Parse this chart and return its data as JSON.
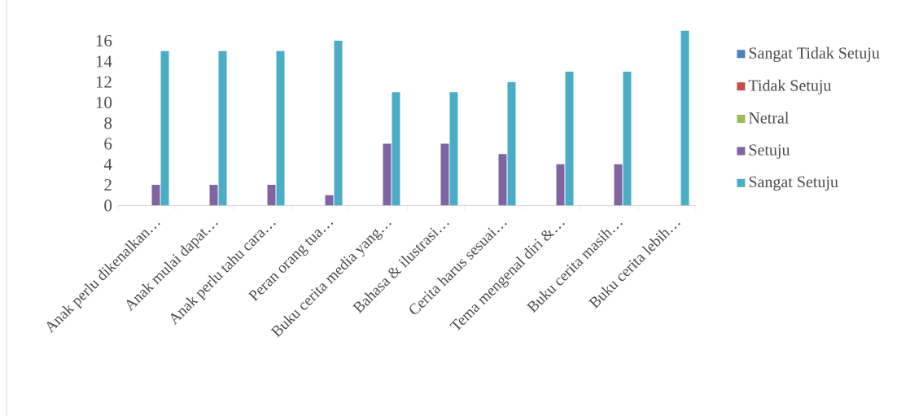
{
  "chart_data": {
    "type": "bar",
    "categories": [
      "Anak perlu dikenalkan…",
      "Anak mulai dapat…",
      "Anak perlu tahu cara…",
      "Peran orang tua…",
      "Buku cerita media yang…",
      "Bahasa & ilustrasi…",
      "Cerita harus sesuai…",
      "Tema mengenal diri &…",
      "Buku cerita masih…",
      "Buku cerita lebih…"
    ],
    "series": [
      {
        "name": "Sangat Tidak Setuju",
        "color": "#4f81bd",
        "values": [
          0,
          0,
          0,
          0,
          0,
          0,
          0,
          0,
          0,
          0
        ]
      },
      {
        "name": "Tidak Setuju",
        "color": "#c0504d",
        "values": [
          0,
          0,
          0,
          0,
          0,
          0,
          0,
          0,
          0,
          0
        ]
      },
      {
        "name": "Netral",
        "color": "#9bbb59",
        "values": [
          0,
          0,
          0,
          0,
          0,
          0,
          0,
          0,
          0,
          0
        ]
      },
      {
        "name": "Setuju",
        "color": "#8064a2",
        "values": [
          2,
          2,
          2,
          1,
          6,
          6,
          5,
          4,
          4,
          0
        ]
      },
      {
        "name": "Sangat Setuju",
        "color": "#4bacc6",
        "values": [
          15,
          15,
          15,
          16,
          11,
          11,
          12,
          13,
          13,
          17
        ]
      }
    ],
    "ylim": [
      0,
      17
    ],
    "yticks": [
      0,
      2,
      4,
      6,
      8,
      10,
      12,
      14,
      16
    ],
    "legend": "right"
  }
}
